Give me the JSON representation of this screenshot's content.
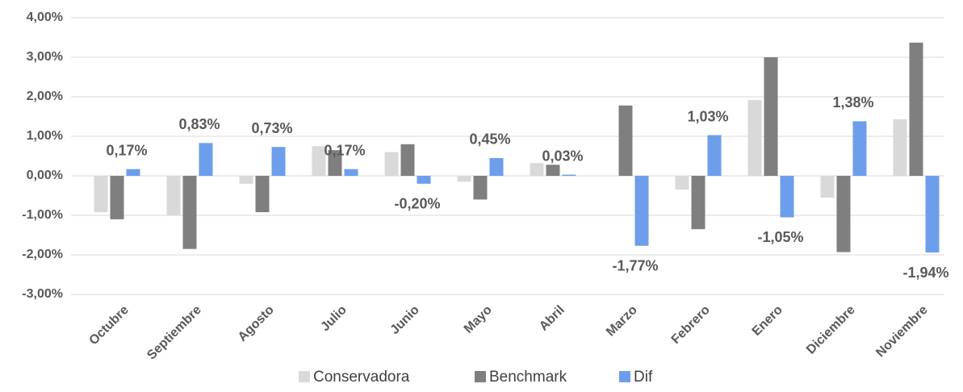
{
  "chart_data": {
    "type": "bar",
    "categories": [
      "Octubre",
      "Septiembre",
      "Agosto",
      "Julio",
      "Junio",
      "Mayo",
      "Abril",
      "Marzo",
      "Febrero",
      "Enero",
      "Diciembre",
      "Noviembre"
    ],
    "series": [
      {
        "name": "Conservadora",
        "color": "#d9d9d9",
        "values": [
          -0.92,
          -1.0,
          -0.2,
          0.75,
          0.6,
          -0.15,
          0.32,
          0,
          -0.35,
          1.92,
          -0.55,
          1.43
        ]
      },
      {
        "name": "Benchmark",
        "color": "#7f7f7f",
        "values": [
          -1.1,
          -1.85,
          -0.92,
          0.65,
          0.8,
          -0.6,
          0.28,
          1.78,
          -1.35,
          3.0,
          -1.93,
          3.37
        ]
      },
      {
        "name": "Dif",
        "color": "#6d9eeb",
        "values": [
          0.17,
          0.83,
          0.73,
          0.17,
          -0.2,
          0.45,
          0.03,
          -1.77,
          1.03,
          -1.05,
          1.38,
          -1.94
        ],
        "value_labels": [
          "0,17%",
          "0,83%",
          "0,73%",
          "0,17%",
          "-0,20%",
          "0,45%",
          "0,03%",
          "-1,77%",
          "1,03%",
          "-1,05%",
          "1,38%",
          "-1,94%"
        ]
      }
    ],
    "ylim": [
      -3,
      4
    ],
    "yticks": [
      {
        "value": -3,
        "label": "-3,00%"
      },
      {
        "value": -2,
        "label": "-2,00%"
      },
      {
        "value": -1,
        "label": "-1,00%"
      },
      {
        "value": 0,
        "label": "0,00%"
      },
      {
        "value": 1,
        "label": "1,00%"
      },
      {
        "value": 2,
        "label": "2,00%"
      },
      {
        "value": 3,
        "label": "3,00%"
      },
      {
        "value": 4,
        "label": "4,00%"
      }
    ],
    "grid": true,
    "legend": "bottom"
  }
}
